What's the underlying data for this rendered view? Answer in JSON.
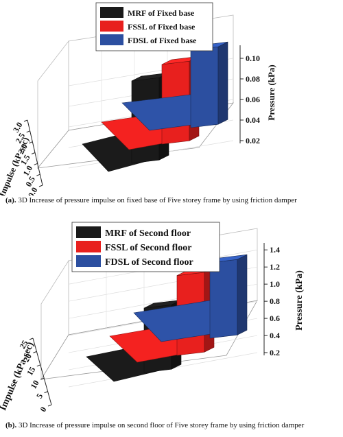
{
  "chart_data": [
    {
      "type": "bar",
      "subtype": "3d-walls",
      "series": [
        {
          "name": "MRF of Fixed base",
          "color": "#1a1a1a",
          "peak": 0.078,
          "base_depth": 1.0
        },
        {
          "name": "FSSL of Fixed base",
          "color": "#e8201e",
          "peak": 0.094,
          "base_depth": 1.3
        },
        {
          "name": "FDSL of Fixed base",
          "color": "#2c4fa0",
          "peak": 0.108,
          "base_depth": 1.6
        }
      ],
      "xlabel": "Impulse (kP-sec)",
      "ylabel": "Pressure (kPa)",
      "xticks": [
        "0.0",
        "0.5",
        "1.0",
        "1.5",
        "2.0",
        "2.5",
        "3.0"
      ],
      "yticks": [
        "0.02",
        "0.04",
        "0.06",
        "0.08",
        "0.10"
      ],
      "xlim": [
        0,
        3.0
      ],
      "ylim": [
        0.02,
        0.11
      ],
      "legend_position": "top",
      "grid": true
    },
    {
      "type": "bar",
      "subtype": "3d-walls",
      "series": [
        {
          "name": "MRF of Second floor",
          "color": "#1a1a1a",
          "peak": 0.72,
          "base_depth": 12
        },
        {
          "name": "FSSL of Second floor",
          "color": "#e8201e",
          "peak": 1.1,
          "base_depth": 14
        },
        {
          "name": "FDSL of Second floor",
          "color": "#2c4fa0",
          "peak": 1.25,
          "base_depth": 17
        }
      ],
      "xlabel": "Impulse (kPa-sec)",
      "ylabel": "Pressure (kPa)",
      "xticks": [
        "0",
        "5",
        "10",
        "15",
        "20",
        "25"
      ],
      "yticks": [
        "0.2",
        "0.4",
        "0.6",
        "0.8",
        "1.0",
        "1.2",
        "1.4"
      ],
      "xlim": [
        0,
        28
      ],
      "ylim": [
        0.2,
        1.45
      ],
      "legend_position": "top",
      "grid": true
    }
  ],
  "captions": [
    {
      "label": "(a).",
      "text": "3D Increase of pressure impulse on fixed base of Five storey frame by using friction damper"
    },
    {
      "label": "(b).",
      "text": "3D Increase of pressure impulse on second floor of Five storey frame by using friction damper"
    }
  ]
}
